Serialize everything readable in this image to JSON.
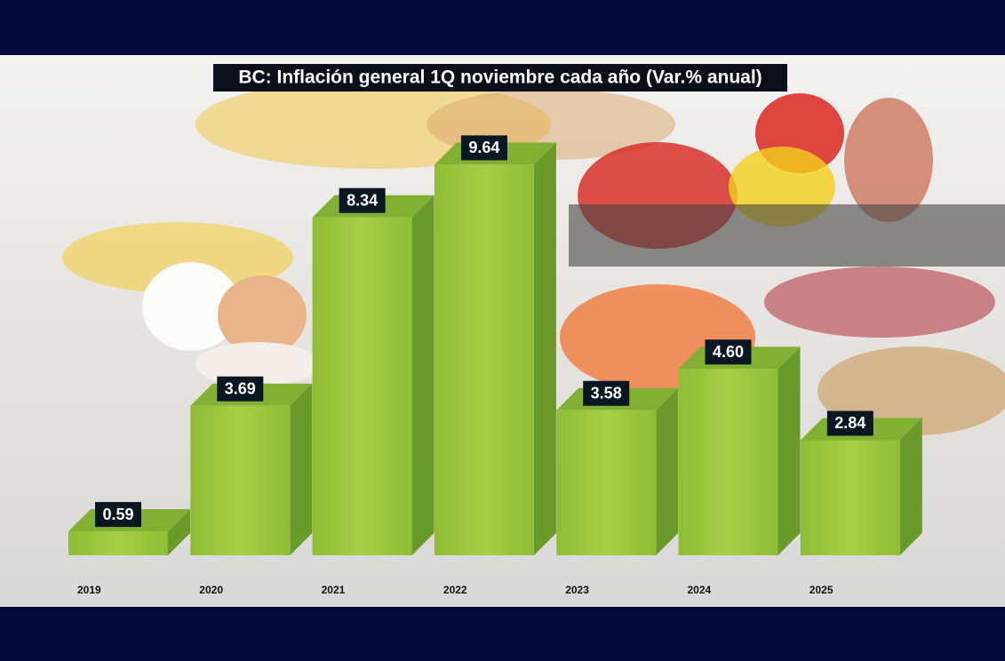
{
  "chart_data": {
    "type": "bar",
    "title": "BC: Inflación general 1Q noviembre cada año (Var.% anual)",
    "categories": [
      "2019",
      "2020",
      "2021",
      "2022",
      "2023",
      "2024",
      "2025"
    ],
    "values": [
      0.59,
      3.69,
      8.34,
      9.64,
      3.58,
      4.6,
      2.84
    ],
    "value_labels": [
      "0.59",
      "3.69",
      "8.34",
      "9.64",
      "3.58",
      "4.60",
      "2.84"
    ],
    "color": "#9cc63c"
  }
}
